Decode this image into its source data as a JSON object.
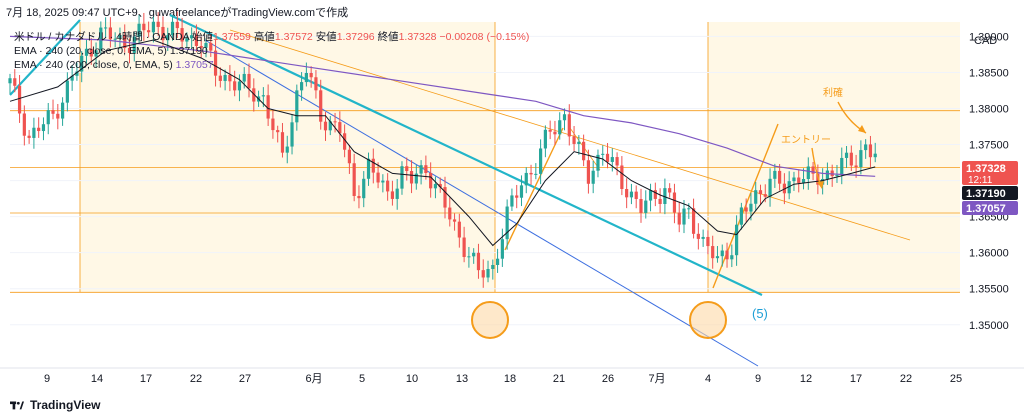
{
  "header": {
    "capture_line": "7月 18, 2025 09:47 UTC+9、guwafreelanceがTradingView.comで作成"
  },
  "legend": {
    "symbol_line_prefix": "米ドル / カナダドル · 4時間 · OANDA",
    "open_label": "始値",
    "open_value": "1.37559",
    "high_label": "高値",
    "high_value": "1.37572",
    "low_label": "安値",
    "low_value": "1.37296",
    "close_label": "終値",
    "close_value": "1.37328",
    "change_value": "−0.00208 (−0.15%)",
    "ema1_label": "EMA · 240 (20, close, 0, EMA, 5)",
    "ema1_value": "1.37190",
    "ema2_label": "EMA · 240 (200, close, 0, EMA, 5)",
    "ema2_value": "1.37057"
  },
  "footer": {
    "brand": "TradingView"
  },
  "colors": {
    "up": "#26a69a",
    "down": "#ef5350",
    "ema20": "#131722",
    "ema200": "#7e57c2",
    "orange": "#f59c1a",
    "teal": "#22b5c9",
    "blue": "#3d6fe0",
    "zone": "#fff8e6"
  },
  "chart_data": {
    "type": "candlestick",
    "currency": "CAD",
    "ylim": [
      1.344,
      1.392
    ],
    "y_ticks": [
      "1.35000",
      "1.35500",
      "1.36000",
      "1.36500",
      "1.37000",
      "1.37500",
      "1.38000",
      "1.38500",
      "1.39000"
    ],
    "x_ticks": [
      "9",
      "14",
      "17",
      "22",
      "27",
      "6月",
      "5",
      "10",
      "13",
      "18",
      "21",
      "26",
      "7月",
      "4",
      "9",
      "12",
      "17",
      "22",
      "25"
    ],
    "price_labels": [
      {
        "text": "1.37328",
        "color": "#ef5350",
        "sub": "12:11"
      },
      {
        "text": "1.37190",
        "color": "#131722",
        "sub": ""
      },
      {
        "text": "1.37057",
        "color": "#7e57c2",
        "sub": ""
      }
    ],
    "annotations": [
      "利確",
      "エントリー",
      "(5)"
    ],
    "price_path": [
      [
        0,
        1.3835
      ],
      [
        4,
        1.376
      ],
      [
        9,
        1.379
      ],
      [
        14,
        1.3855
      ],
      [
        19,
        1.3905
      ],
      [
        24,
        1.389
      ],
      [
        30,
        1.3915
      ],
      [
        36,
        1.39
      ],
      [
        40,
        1.3895
      ],
      [
        43,
        1.385
      ],
      [
        46,
        1.384
      ],
      [
        49,
        1.383
      ],
      [
        53,
        1.3815
      ],
      [
        57,
        1.373
      ],
      [
        60,
        1.382
      ],
      [
        62,
        1.3855
      ],
      [
        65,
        1.379
      ],
      [
        69,
        1.377
      ],
      [
        72,
        1.368
      ],
      [
        75,
        1.372
      ],
      [
        79,
        1.368
      ],
      [
        82,
        1.371
      ],
      [
        84,
        1.37
      ],
      [
        87,
        1.372
      ],
      [
        89,
        1.369
      ],
      [
        92,
        1.365
      ],
      [
        95,
        1.361
      ],
      [
        98,
        1.357
      ],
      [
        101,
        1.358
      ],
      [
        104,
        1.365
      ],
      [
        107,
        1.37
      ],
      [
        110,
        1.372
      ],
      [
        113,
        1.377
      ],
      [
        116,
        1.379
      ],
      [
        118,
        1.375
      ],
      [
        121,
        1.371
      ],
      [
        124,
        1.374
      ],
      [
        126,
        1.372
      ],
      [
        129,
        1.369
      ],
      [
        132,
        1.366
      ],
      [
        135,
        1.368
      ],
      [
        137,
        1.369
      ],
      [
        140,
        1.364
      ],
      [
        142,
        1.366
      ],
      [
        145,
        1.361
      ],
      [
        148,
        1.359
      ],
      [
        151,
        1.361
      ],
      [
        153,
        1.365
      ],
      [
        156,
        1.368
      ],
      [
        159,
        1.37
      ],
      [
        162,
        1.369
      ],
      [
        165,
        1.371
      ],
      [
        168,
        1.37
      ],
      [
        171,
        1.371
      ],
      [
        174,
        1.372
      ],
      [
        177,
        1.373
      ],
      [
        179,
        1.375
      ],
      [
        181,
        1.3733
      ]
    ],
    "ema20_path": [
      [
        0,
        1.381
      ],
      [
        10,
        1.383
      ],
      [
        20,
        1.388
      ],
      [
        30,
        1.3895
      ],
      [
        40,
        1.387
      ],
      [
        48,
        1.384
      ],
      [
        54,
        1.38
      ],
      [
        60,
        1.379
      ],
      [
        66,
        1.379
      ],
      [
        72,
        1.374
      ],
      [
        80,
        1.371
      ],
      [
        88,
        1.3705
      ],
      [
        96,
        1.365
      ],
      [
        101,
        1.361
      ],
      [
        106,
        1.364
      ],
      [
        112,
        1.37
      ],
      [
        118,
        1.374
      ],
      [
        124,
        1.373
      ],
      [
        130,
        1.37
      ],
      [
        136,
        1.368
      ],
      [
        142,
        1.3665
      ],
      [
        148,
        1.363
      ],
      [
        152,
        1.3625
      ],
      [
        158,
        1.3675
      ],
      [
        164,
        1.3695
      ],
      [
        170,
        1.37
      ],
      [
        176,
        1.371
      ],
      [
        181,
        1.3719
      ]
    ],
    "ema200_path": [
      [
        0,
        1.39
      ],
      [
        20,
        1.3895
      ],
      [
        40,
        1.388
      ],
      [
        60,
        1.386
      ],
      [
        80,
        1.384
      ],
      [
        100,
        1.382
      ],
      [
        110,
        1.381
      ],
      [
        120,
        1.379
      ],
      [
        130,
        1.378
      ],
      [
        140,
        1.3765
      ],
      [
        150,
        1.3745
      ],
      [
        160,
        1.372
      ],
      [
        170,
        1.371
      ],
      [
        181,
        1.3706
      ]
    ],
    "n_bars": 182
  }
}
